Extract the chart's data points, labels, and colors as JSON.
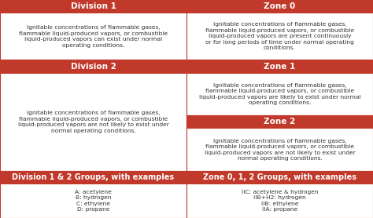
{
  "header_color": "#c0392b",
  "header_text_color": "#ffffff",
  "cell_bg_color": "#ffffff",
  "cell_text_color": "#333333",
  "border_color": "#c0392b",
  "header_font_size": 7.5,
  "cell_font_size": 5.4,
  "footer_font_size": 7.0,
  "div1_header": "Division 1",
  "div1_body": "Ignitable concentrations of flammable gases,\nflammable liquid-produced vapors, or combustible\nliquid-produced vapors can exist under normal\noperating conditions.",
  "zone0_header": "Zone 0",
  "zone0_body": "Ignitable concentrations of flammable gases,\nflammable liquid-produced vapors, or combustible\nliquid-produced vapors are present continuously\nor for long periods of time under normal operating\nconditions.",
  "div2_header": "Division 2",
  "div2_body": "Ignitable concentrations of flammable gases,\nflammable liquid-produced vapors, or combustible\nliquid-produced vapors are not likely to exist under\nnormal operating conditions.",
  "zone1_header": "Zone 1",
  "zone1_body": "Ignitable concentrations of flammable gases,\nflammable liquid-produced vapors, or combustible\nliquid-produced vapors are likely to exist under normal\noperating conditions.",
  "zone2_header": "Zone 2",
  "zone2_body": "Ignitable concentrations of flammable gases,\nflammable liquid-produced vapors, or combustible\nliquid-produced vapors are not likely to exist under\nnormal operating conditions.",
  "footer_left_header": "Division 1 & 2 Groups, with examples",
  "footer_left_body": "A: acetylene\nB: hydrogen\nC: ethylene\nD: propane",
  "footer_right_header": "Zone 0, 1, 2 Groups, with examples",
  "footer_right_body": "IIC: acetylene & hydrogen\nIIB+H2: hydrogen\nIIB: ethylene\nIIA: propane"
}
